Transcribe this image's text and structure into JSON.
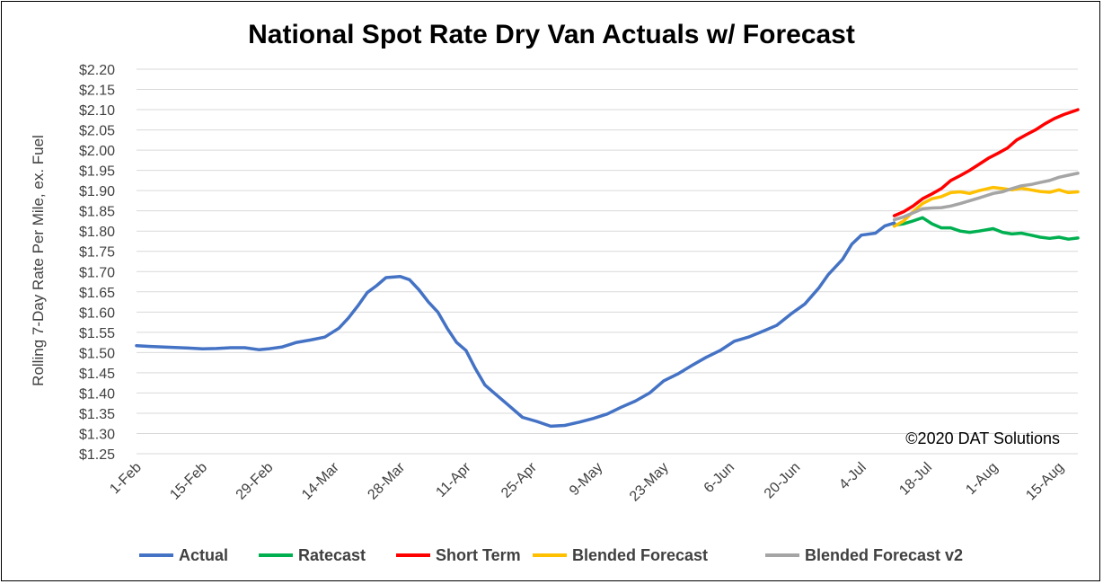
{
  "chart_data": {
    "type": "line",
    "title": "National Spot Rate Dry Van Actuals w/ Forecast",
    "xlabel": "",
    "ylabel": "Rolling 7-Day Rate Per Mile, ex. Fuel",
    "ylim": [
      1.25,
      2.2
    ],
    "y_ticks": [
      "$1.25",
      "$1.30",
      "$1.35",
      "$1.40",
      "$1.45",
      "$1.50",
      "$1.55",
      "$1.60",
      "$1.65",
      "$1.70",
      "$1.75",
      "$1.80",
      "$1.85",
      "$1.90",
      "$1.95",
      "$2.00",
      "$2.05",
      "$2.10",
      "$2.15",
      "$2.20"
    ],
    "x_ticks": [
      "1-Feb",
      "15-Feb",
      "29-Feb",
      "14-Mar",
      "28-Mar",
      "11-Apr",
      "25-Apr",
      "9-May",
      "23-May",
      "6-Jun",
      "20-Jun",
      "4-Jul",
      "18-Jul",
      "1-Aug",
      "15-Aug"
    ],
    "x_range": [
      "2020-02-01",
      "2020-08-19"
    ],
    "grid": "horizontal",
    "legend": "bottom",
    "annotation": "©2020 DAT Solutions",
    "series": [
      {
        "name": "Actual",
        "color": "#4472c4",
        "points": [
          [
            "2020-02-01",
            1.517
          ],
          [
            "2020-02-04",
            1.515
          ],
          [
            "2020-02-08",
            1.513
          ],
          [
            "2020-02-12",
            1.511
          ],
          [
            "2020-02-15",
            1.509
          ],
          [
            "2020-02-18",
            1.51
          ],
          [
            "2020-02-21",
            1.512
          ],
          [
            "2020-02-24",
            1.512
          ],
          [
            "2020-02-27",
            1.507
          ],
          [
            "2020-02-29",
            1.509
          ],
          [
            "2020-03-03",
            1.514
          ],
          [
            "2020-03-06",
            1.525
          ],
          [
            "2020-03-09",
            1.531
          ],
          [
            "2020-03-12",
            1.538
          ],
          [
            "2020-03-15",
            1.56
          ],
          [
            "2020-03-17",
            1.585
          ],
          [
            "2020-03-19",
            1.615
          ],
          [
            "2020-03-21",
            1.648
          ],
          [
            "2020-03-23",
            1.665
          ],
          [
            "2020-03-25",
            1.685
          ],
          [
            "2020-03-28",
            1.688
          ],
          [
            "2020-03-30",
            1.68
          ],
          [
            "2020-04-01",
            1.655
          ],
          [
            "2020-04-03",
            1.625
          ],
          [
            "2020-04-05",
            1.6
          ],
          [
            "2020-04-07",
            1.56
          ],
          [
            "2020-04-09",
            1.525
          ],
          [
            "2020-04-11",
            1.505
          ],
          [
            "2020-04-13",
            1.46
          ],
          [
            "2020-04-15",
            1.42
          ],
          [
            "2020-04-17",
            1.4
          ],
          [
            "2020-04-20",
            1.37
          ],
          [
            "2020-04-23",
            1.34
          ],
          [
            "2020-04-26",
            1.33
          ],
          [
            "2020-04-29",
            1.318
          ],
          [
            "2020-05-02",
            1.32
          ],
          [
            "2020-05-05",
            1.328
          ],
          [
            "2020-05-08",
            1.337
          ],
          [
            "2020-05-11",
            1.348
          ],
          [
            "2020-05-14",
            1.365
          ],
          [
            "2020-05-17",
            1.38
          ],
          [
            "2020-05-20",
            1.4
          ],
          [
            "2020-05-23",
            1.43
          ],
          [
            "2020-05-26",
            1.447
          ],
          [
            "2020-05-29",
            1.468
          ],
          [
            "2020-06-01",
            1.488
          ],
          [
            "2020-06-04",
            1.505
          ],
          [
            "2020-06-07",
            1.528
          ],
          [
            "2020-06-10",
            1.538
          ],
          [
            "2020-06-13",
            1.552
          ],
          [
            "2020-06-16",
            1.567
          ],
          [
            "2020-06-19",
            1.595
          ],
          [
            "2020-06-22",
            1.62
          ],
          [
            "2020-06-25",
            1.66
          ],
          [
            "2020-06-27",
            1.693
          ],
          [
            "2020-06-30",
            1.73
          ],
          [
            "2020-07-02",
            1.768
          ],
          [
            "2020-07-04",
            1.79
          ],
          [
            "2020-07-07",
            1.795
          ],
          [
            "2020-07-09",
            1.813
          ],
          [
            "2020-07-11",
            1.82
          ]
        ]
      },
      {
        "name": "Ratecast",
        "color": "#00b050",
        "points": [
          [
            "2020-07-11",
            1.815
          ],
          [
            "2020-07-13",
            1.818
          ],
          [
            "2020-07-15",
            1.825
          ],
          [
            "2020-07-17",
            1.833
          ],
          [
            "2020-07-19",
            1.818
          ],
          [
            "2020-07-21",
            1.808
          ],
          [
            "2020-07-23",
            1.808
          ],
          [
            "2020-07-25",
            1.8
          ],
          [
            "2020-07-27",
            1.797
          ],
          [
            "2020-07-29",
            1.8
          ],
          [
            "2020-08-01",
            1.806
          ],
          [
            "2020-08-03",
            1.797
          ],
          [
            "2020-08-05",
            1.793
          ],
          [
            "2020-08-07",
            1.795
          ],
          [
            "2020-08-09",
            1.79
          ],
          [
            "2020-08-11",
            1.785
          ],
          [
            "2020-08-13",
            1.782
          ],
          [
            "2020-08-15",
            1.785
          ],
          [
            "2020-08-17",
            1.78
          ],
          [
            "2020-08-19",
            1.783
          ]
        ]
      },
      {
        "name": "Short Term",
        "color": "#ff0000",
        "points": [
          [
            "2020-07-11",
            1.838
          ],
          [
            "2020-07-13",
            1.848
          ],
          [
            "2020-07-15",
            1.862
          ],
          [
            "2020-07-17",
            1.88
          ],
          [
            "2020-07-19",
            1.892
          ],
          [
            "2020-07-21",
            1.905
          ],
          [
            "2020-07-23",
            1.925
          ],
          [
            "2020-07-25",
            1.937
          ],
          [
            "2020-07-27",
            1.95
          ],
          [
            "2020-07-29",
            1.965
          ],
          [
            "2020-07-31",
            1.98
          ],
          [
            "2020-08-02",
            1.992
          ],
          [
            "2020-08-04",
            2.005
          ],
          [
            "2020-08-06",
            2.025
          ],
          [
            "2020-08-08",
            2.038
          ],
          [
            "2020-08-10",
            2.05
          ],
          [
            "2020-08-12",
            2.065
          ],
          [
            "2020-08-14",
            2.078
          ],
          [
            "2020-08-16",
            2.088
          ],
          [
            "2020-08-19",
            2.1
          ]
        ]
      },
      {
        "name": "Blended Forecast",
        "color": "#ffc000",
        "points": [
          [
            "2020-07-11",
            1.812
          ],
          [
            "2020-07-13",
            1.825
          ],
          [
            "2020-07-15",
            1.848
          ],
          [
            "2020-07-17",
            1.868
          ],
          [
            "2020-07-19",
            1.88
          ],
          [
            "2020-07-21",
            1.885
          ],
          [
            "2020-07-23",
            1.895
          ],
          [
            "2020-07-25",
            1.897
          ],
          [
            "2020-07-27",
            1.893
          ],
          [
            "2020-07-29",
            1.9
          ],
          [
            "2020-08-01",
            1.908
          ],
          [
            "2020-08-03",
            1.905
          ],
          [
            "2020-08-05",
            1.902
          ],
          [
            "2020-08-07",
            1.906
          ],
          [
            "2020-08-09",
            1.902
          ],
          [
            "2020-08-11",
            1.898
          ],
          [
            "2020-08-13",
            1.896
          ],
          [
            "2020-08-15",
            1.902
          ],
          [
            "2020-08-17",
            1.895
          ],
          [
            "2020-08-19",
            1.897
          ]
        ]
      },
      {
        "name": "Blended Forecast v2",
        "color": "#a5a5a5",
        "points": [
          [
            "2020-07-11",
            1.828
          ],
          [
            "2020-07-13",
            1.835
          ],
          [
            "2020-07-15",
            1.845
          ],
          [
            "2020-07-17",
            1.855
          ],
          [
            "2020-07-19",
            1.857
          ],
          [
            "2020-07-21",
            1.858
          ],
          [
            "2020-07-23",
            1.862
          ],
          [
            "2020-07-25",
            1.868
          ],
          [
            "2020-07-27",
            1.875
          ],
          [
            "2020-07-29",
            1.882
          ],
          [
            "2020-08-01",
            1.893
          ],
          [
            "2020-08-03",
            1.897
          ],
          [
            "2020-08-05",
            1.905
          ],
          [
            "2020-08-07",
            1.912
          ],
          [
            "2020-08-09",
            1.915
          ],
          [
            "2020-08-11",
            1.92
          ],
          [
            "2020-08-13",
            1.925
          ],
          [
            "2020-08-15",
            1.933
          ],
          [
            "2020-08-17",
            1.938
          ],
          [
            "2020-08-19",
            1.943
          ]
        ]
      }
    ]
  }
}
